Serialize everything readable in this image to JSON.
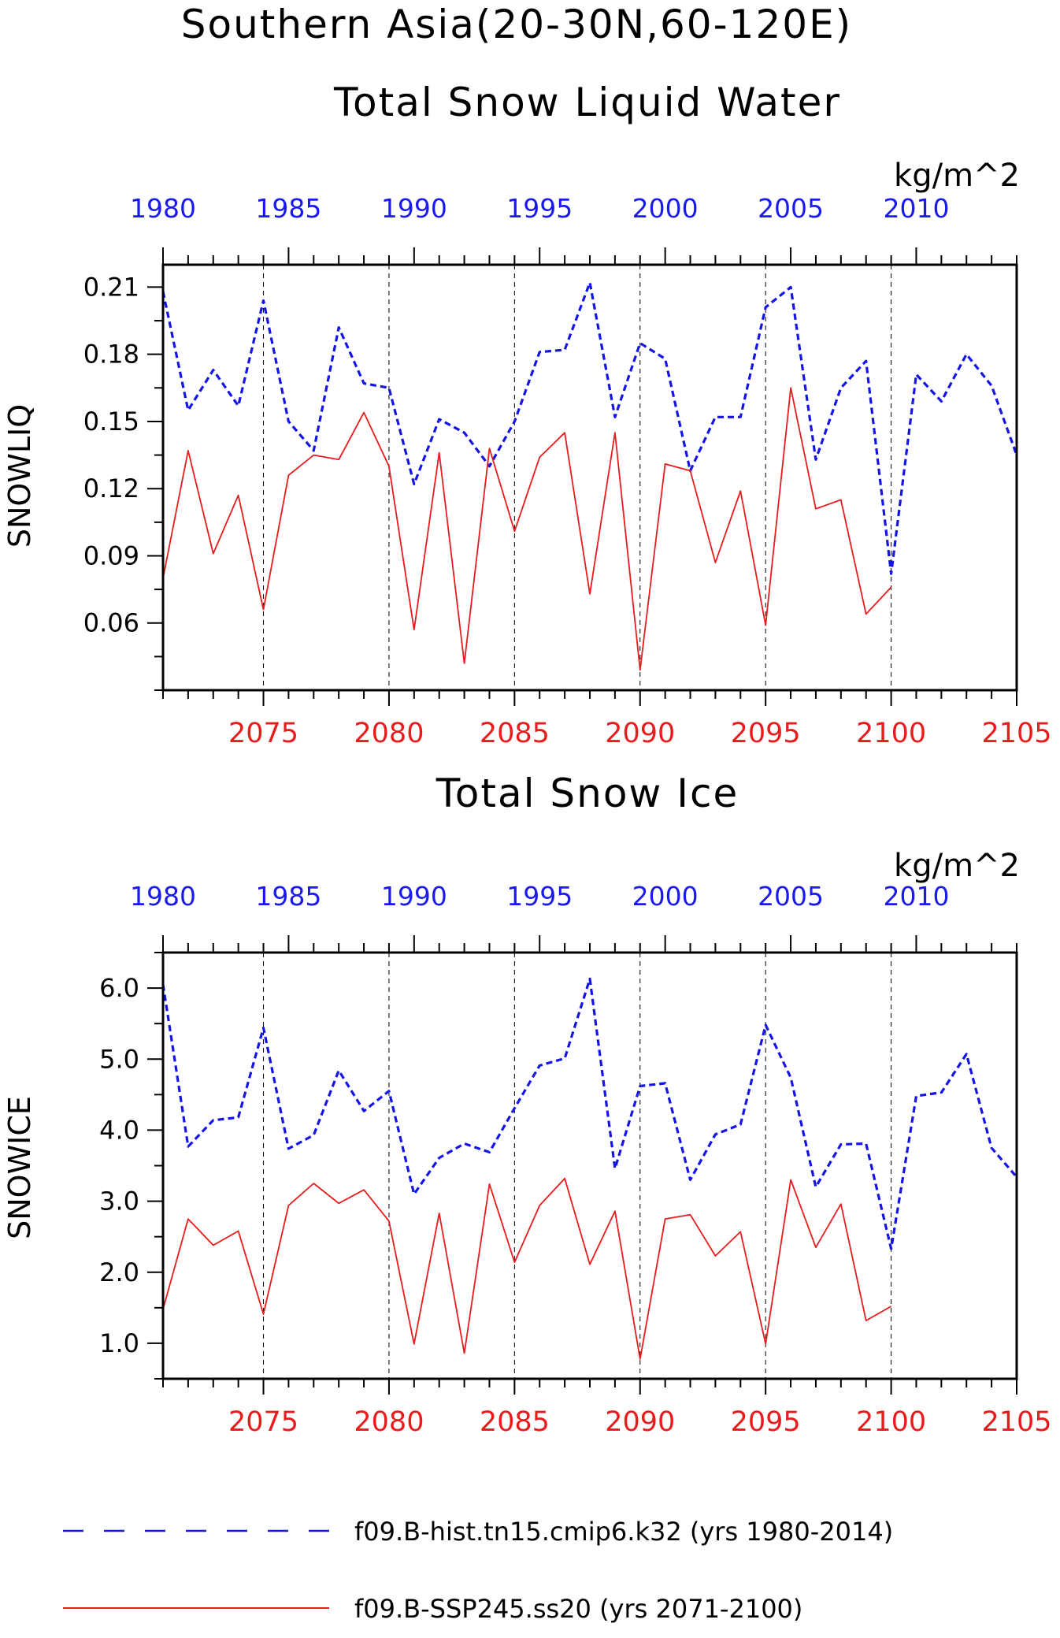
{
  "main_title": "Southern Asia(20-30N,60-120E)",
  "colors": {
    "hist": "#1414e6",
    "ssp": "#e81c1c",
    "axis": "#000000"
  },
  "legend": {
    "hist": "f09.B-hist.tn15.cmip6.k32 (yrs 1980-2014)",
    "ssp": "f09.B-SSP245.ss20 (yrs 2071-2100)"
  },
  "chart_data": [
    {
      "type": "line",
      "title": "Total Snow Liquid Water",
      "units": "kg/m^2",
      "ylabel": "SNOWLIQ",
      "ylim": [
        0.03,
        0.22
      ],
      "yticks": [
        "0.21",
        "0.18",
        "0.15",
        "0.12",
        "0.09",
        "0.06"
      ],
      "top_axis": {
        "xlim": [
          1980,
          2014
        ],
        "ticks": [
          "1980",
          "1985",
          "1990",
          "1995",
          "2000",
          "2005",
          "2010"
        ]
      },
      "bottom_axis": {
        "xlim": [
          2071,
          2105
        ],
        "ticks": [
          "2075",
          "2080",
          "2085",
          "2090",
          "2095",
          "2100",
          "2105"
        ]
      },
      "grid": "vertical dashed at bottom-axis labeled ticks",
      "series": [
        {
          "name": "f09.B-hist.tn15.cmip6.k32 (yrs 1980-2014)",
          "axis": "top",
          "style": "dashed",
          "x": [
            1980,
            1981,
            1982,
            1983,
            1984,
            1985,
            1986,
            1987,
            1988,
            1989,
            1990,
            1991,
            1992,
            1993,
            1994,
            1995,
            1996,
            1997,
            1998,
            1999,
            2000,
            2001,
            2002,
            2003,
            2004,
            2005,
            2006,
            2007,
            2008,
            2009,
            2010,
            2011,
            2012,
            2013,
            2014
          ],
          "values": [
            0.208,
            0.155,
            0.173,
            0.157,
            0.204,
            0.15,
            0.137,
            0.192,
            0.167,
            0.165,
            0.122,
            0.151,
            0.145,
            0.13,
            0.15,
            0.181,
            0.182,
            0.212,
            0.152,
            0.185,
            0.178,
            0.128,
            0.152,
            0.152,
            0.201,
            0.21,
            0.133,
            0.165,
            0.177,
            0.082,
            0.171,
            0.159,
            0.18,
            0.166,
            0.135
          ]
        },
        {
          "name": "f09.B-SSP245.ss20 (yrs 2071-2100)",
          "axis": "bottom",
          "style": "solid",
          "x": [
            2071,
            2072,
            2073,
            2074,
            2075,
            2076,
            2077,
            2078,
            2079,
            2080,
            2081,
            2082,
            2083,
            2084,
            2085,
            2086,
            2087,
            2088,
            2089,
            2090,
            2091,
            2092,
            2093,
            2094,
            2095,
            2096,
            2097,
            2098,
            2099,
            2100
          ],
          "values": [
            0.08,
            0.137,
            0.091,
            0.117,
            0.066,
            0.126,
            0.135,
            0.133,
            0.154,
            0.13,
            0.057,
            0.136,
            0.042,
            0.138,
            0.101,
            0.134,
            0.145,
            0.073,
            0.145,
            0.039,
            0.131,
            0.128,
            0.087,
            0.119,
            0.059,
            0.165,
            0.111,
            0.115,
            0.064,
            0.076
          ]
        }
      ]
    },
    {
      "type": "line",
      "title": "Total Snow Ice",
      "units": "kg/m^2",
      "ylabel": "SNOWICE",
      "ylim": [
        0.5,
        6.5
      ],
      "yticks": [
        "6.0",
        "5.0",
        "4.0",
        "3.0",
        "2.0",
        "1.0"
      ],
      "top_axis": {
        "xlim": [
          1980,
          2014
        ],
        "ticks": [
          "1980",
          "1985",
          "1990",
          "1995",
          "2000",
          "2005",
          "2010"
        ]
      },
      "bottom_axis": {
        "xlim": [
          2071,
          2105
        ],
        "ticks": [
          "2075",
          "2080",
          "2085",
          "2090",
          "2095",
          "2100",
          "2105"
        ]
      },
      "grid": "vertical dashed at bottom-axis labeled ticks",
      "series": [
        {
          "name": "f09.B-hist.tn15.cmip6.k32 (yrs 1980-2014)",
          "axis": "top",
          "style": "dashed",
          "x": [
            1980,
            1981,
            1982,
            1983,
            1984,
            1985,
            1986,
            1987,
            1988,
            1989,
            1990,
            1991,
            1992,
            1993,
            1994,
            1995,
            1996,
            1997,
            1998,
            1999,
            2000,
            2001,
            2002,
            2003,
            2004,
            2005,
            2006,
            2007,
            2008,
            2009,
            2010,
            2011,
            2012,
            2013,
            2014
          ],
          "values": [
            6.05,
            3.77,
            4.14,
            4.18,
            5.44,
            3.74,
            3.93,
            4.84,
            4.27,
            4.55,
            3.1,
            3.61,
            3.81,
            3.69,
            4.31,
            4.91,
            5.01,
            6.13,
            3.46,
            4.62,
            4.66,
            3.3,
            3.94,
            4.08,
            5.48,
            4.74,
            3.2,
            3.8,
            3.81,
            2.33,
            4.48,
            4.53,
            5.07,
            3.75,
            3.34
          ]
        },
        {
          "name": "f09.B-SSP245.ss20 (yrs 2071-2100)",
          "axis": "bottom",
          "style": "solid",
          "x": [
            2071,
            2072,
            2073,
            2074,
            2075,
            2076,
            2077,
            2078,
            2079,
            2080,
            2081,
            2082,
            2083,
            2084,
            2085,
            2086,
            2087,
            2088,
            2089,
            2090,
            2091,
            2092,
            2093,
            2094,
            2095,
            2096,
            2097,
            2098,
            2099,
            2100
          ],
          "values": [
            1.48,
            2.75,
            2.38,
            2.58,
            1.41,
            2.94,
            3.25,
            2.97,
            3.16,
            2.72,
            0.99,
            2.83,
            0.86,
            3.24,
            2.14,
            2.94,
            3.32,
            2.11,
            2.86,
            0.78,
            2.75,
            2.81,
            2.23,
            2.57,
            0.99,
            3.3,
            2.35,
            2.96,
            1.32,
            1.52
          ]
        }
      ]
    }
  ]
}
